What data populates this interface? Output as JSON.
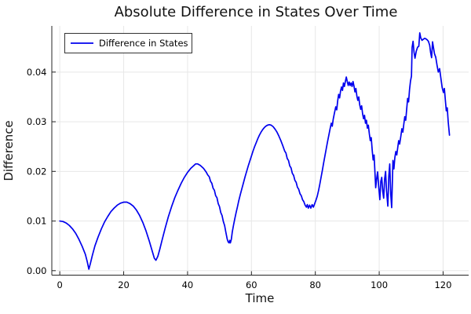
{
  "chart_data": {
    "type": "line",
    "title": "Absolute Difference in States Over Time",
    "xlabel": "Time",
    "ylabel": "Difference",
    "xlim": [
      -2.5,
      128
    ],
    "ylim": [
      -0.0009,
      0.0493
    ],
    "xticks": [
      0,
      20,
      40,
      60,
      80,
      100,
      120
    ],
    "xtick_labels": [
      "0",
      "20",
      "40",
      "60",
      "80",
      "100",
      "120"
    ],
    "yticks": [
      0,
      0.01,
      0.02,
      0.03,
      0.04
    ],
    "ytick_labels": [
      "0.00",
      "0.01",
      "0.02",
      "0.03",
      "0.04"
    ],
    "grid": true,
    "legend": {
      "position": "top-left",
      "border_color": "#333333",
      "background": "#ffffff"
    },
    "colors": {
      "background": "#ffffff",
      "grid": "#e7e7e7",
      "axis": "#252525",
      "text": "#000000",
      "series1": "#0000ee"
    },
    "series": [
      {
        "name": "Difference in States",
        "color": "#0000ee",
        "points": [
          [
            0,
            0.01
          ],
          [
            1,
            0.0099
          ],
          [
            2,
            0.0096
          ],
          [
            3,
            0.0091
          ],
          [
            4,
            0.0084
          ],
          [
            5,
            0.0075
          ],
          [
            6,
            0.0063
          ],
          [
            7,
            0.0049
          ],
          [
            8,
            0.0033
          ],
          [
            8.6,
            0.0018
          ],
          [
            9.1,
            0.0003
          ],
          [
            9.6,
            0.0015
          ],
          [
            10.2,
            0.0031
          ],
          [
            11,
            0.005
          ],
          [
            12,
            0.0068
          ],
          [
            13,
            0.0084
          ],
          [
            14,
            0.0098
          ],
          [
            15,
            0.0109
          ],
          [
            16,
            0.0119
          ],
          [
            17,
            0.0126
          ],
          [
            18,
            0.0132
          ],
          [
            19,
            0.0136
          ],
          [
            20,
            0.0138
          ],
          [
            21,
            0.0138
          ],
          [
            22,
            0.0135
          ],
          [
            23,
            0.013
          ],
          [
            24,
            0.0122
          ],
          [
            25,
            0.0111
          ],
          [
            26,
            0.0097
          ],
          [
            27,
            0.008
          ],
          [
            28,
            0.006
          ],
          [
            29,
            0.0038
          ],
          [
            29.6,
            0.0025
          ],
          [
            30.1,
            0.0021
          ],
          [
            30.7,
            0.0029
          ],
          [
            31.3,
            0.0043
          ],
          [
            32,
            0.0061
          ],
          [
            33,
            0.0086
          ],
          [
            34,
            0.0109
          ],
          [
            35,
            0.0129
          ],
          [
            36,
            0.0147
          ],
          [
            37,
            0.0162
          ],
          [
            38,
            0.0176
          ],
          [
            39,
            0.0188
          ],
          [
            40,
            0.0198
          ],
          [
            41,
            0.0206
          ],
          [
            42,
            0.0212
          ],
          [
            42.5,
            0.0215
          ],
          [
            43.2,
            0.0215
          ],
          [
            44,
            0.0212
          ],
          [
            45,
            0.0206
          ],
          [
            45.8,
            0.0199
          ],
          [
            46.3,
            0.0193
          ],
          [
            46.8,
            0.0189
          ],
          [
            47.2,
            0.018
          ],
          [
            47.6,
            0.0176
          ],
          [
            48,
            0.0166
          ],
          [
            48.4,
            0.0162
          ],
          [
            48.8,
            0.0151
          ],
          [
            49.2,
            0.0147
          ],
          [
            49.6,
            0.0135
          ],
          [
            50,
            0.0129
          ],
          [
            50.4,
            0.0117
          ],
          [
            50.8,
            0.0111
          ],
          [
            51.2,
            0.0099
          ],
          [
            51.6,
            0.0091
          ],
          [
            52,
            0.0077
          ],
          [
            52.4,
            0.0064
          ],
          [
            52.7,
            0.0058
          ],
          [
            53,
            0.0056
          ],
          [
            53.2,
            0.0061
          ],
          [
            53.4,
            0.0056
          ],
          [
            53.7,
            0.0063
          ],
          [
            54,
            0.0078
          ],
          [
            54.4,
            0.0092
          ],
          [
            54.8,
            0.0105
          ],
          [
            55.2,
            0.0117
          ],
          [
            55.6,
            0.0128
          ],
          [
            56,
            0.014
          ],
          [
            56.5,
            0.0153
          ],
          [
            57,
            0.0165
          ],
          [
            57.5,
            0.0177
          ],
          [
            58,
            0.0189
          ],
          [
            58.5,
            0.02
          ],
          [
            59,
            0.0211
          ],
          [
            59.5,
            0.0221
          ],
          [
            60,
            0.0231
          ],
          [
            60.5,
            0.0241
          ],
          [
            61,
            0.025
          ],
          [
            61.5,
            0.0258
          ],
          [
            62,
            0.0266
          ],
          [
            62.5,
            0.0273
          ],
          [
            63,
            0.0279
          ],
          [
            63.5,
            0.0284
          ],
          [
            64,
            0.0288
          ],
          [
            64.5,
            0.0291
          ],
          [
            65,
            0.0293
          ],
          [
            65.6,
            0.0294
          ],
          [
            66.2,
            0.0293
          ],
          [
            66.8,
            0.029
          ],
          [
            67.4,
            0.0285
          ],
          [
            68,
            0.0279
          ],
          [
            68.6,
            0.0271
          ],
          [
            69.2,
            0.0262
          ],
          [
            69.8,
            0.0252
          ],
          [
            70.4,
            0.0241
          ],
          [
            70.8,
            0.0237
          ],
          [
            71.2,
            0.0226
          ],
          [
            71.6,
            0.0222
          ],
          [
            72,
            0.0211
          ],
          [
            72.4,
            0.0207
          ],
          [
            72.8,
            0.0196
          ],
          [
            73.2,
            0.0192
          ],
          [
            73.6,
            0.0182
          ],
          [
            74,
            0.0178
          ],
          [
            74.4,
            0.0168
          ],
          [
            74.8,
            0.0164
          ],
          [
            75.2,
            0.0155
          ],
          [
            75.6,
            0.0151
          ],
          [
            76,
            0.0143
          ],
          [
            76.4,
            0.0139
          ],
          [
            76.8,
            0.0132
          ],
          [
            77.2,
            0.0128
          ],
          [
            77.5,
            0.0133
          ],
          [
            77.8,
            0.0126
          ],
          [
            78.2,
            0.0132
          ],
          [
            78.6,
            0.0126
          ],
          [
            79,
            0.0133
          ],
          [
            79.4,
            0.0128
          ],
          [
            79.8,
            0.0135
          ],
          [
            80.2,
            0.0142
          ],
          [
            80.6,
            0.015
          ],
          [
            81,
            0.0161
          ],
          [
            81.4,
            0.0174
          ],
          [
            81.8,
            0.0188
          ],
          [
            82.2,
            0.0202
          ],
          [
            82.6,
            0.0217
          ],
          [
            83,
            0.0231
          ],
          [
            83.4,
            0.0245
          ],
          [
            83.8,
            0.0259
          ],
          [
            84.2,
            0.0272
          ],
          [
            84.6,
            0.0285
          ],
          [
            85,
            0.0297
          ],
          [
            85.3,
            0.0291
          ],
          [
            85.6,
            0.0305
          ],
          [
            86,
            0.0318
          ],
          [
            86.4,
            0.033
          ],
          [
            86.7,
            0.0324
          ],
          [
            87,
            0.0342
          ],
          [
            87.3,
            0.0355
          ],
          [
            87.6,
            0.0348
          ],
          [
            87.9,
            0.0362
          ],
          [
            88.2,
            0.037
          ],
          [
            88.5,
            0.0363
          ],
          [
            88.8,
            0.0378
          ],
          [
            89.1,
            0.0371
          ],
          [
            89.4,
            0.0381
          ],
          [
            89.7,
            0.039
          ],
          [
            90,
            0.0381
          ],
          [
            90.3,
            0.0373
          ],
          [
            90.6,
            0.038
          ],
          [
            90.9,
            0.0373
          ],
          [
            91.2,
            0.0378
          ],
          [
            91.5,
            0.0371
          ],
          [
            91.8,
            0.0381
          ],
          [
            92.1,
            0.0372
          ],
          [
            92.4,
            0.036
          ],
          [
            92.7,
            0.0367
          ],
          [
            93,
            0.0352
          ],
          [
            93.3,
            0.0343
          ],
          [
            93.6,
            0.035
          ],
          [
            93.9,
            0.0334
          ],
          [
            94.2,
            0.0325
          ],
          [
            94.5,
            0.0332
          ],
          [
            94.8,
            0.0316
          ],
          [
            95.1,
            0.0306
          ],
          [
            95.4,
            0.0313
          ],
          [
            95.7,
            0.0297
          ],
          [
            96,
            0.0303
          ],
          [
            96.3,
            0.0287
          ],
          [
            96.6,
            0.0293
          ],
          [
            96.9,
            0.0276
          ],
          [
            97.2,
            0.0262
          ],
          [
            97.5,
            0.0268
          ],
          [
            97.8,
            0.0243
          ],
          [
            98.1,
            0.0223
          ],
          [
            98.4,
            0.0233
          ],
          [
            98.9,
            0.0167
          ],
          [
            99.2,
            0.0185
          ],
          [
            99.5,
            0.0199
          ],
          [
            99.8,
            0.0172
          ],
          [
            100.2,
            0.0143
          ],
          [
            100.5,
            0.018
          ],
          [
            100.8,
            0.0188
          ],
          [
            101.1,
            0.016
          ],
          [
            101.4,
            0.0146
          ],
          [
            101.7,
            0.0185
          ],
          [
            102,
            0.02
          ],
          [
            102.3,
            0.016
          ],
          [
            102.7,
            0.013
          ],
          [
            103,
            0.019
          ],
          [
            103.3,
            0.0215
          ],
          [
            103.6,
            0.0155
          ],
          [
            103.9,
            0.0127
          ],
          [
            104.3,
            0.0222
          ],
          [
            104.6,
            0.0205
          ],
          [
            104.9,
            0.0228
          ],
          [
            105.2,
            0.024
          ],
          [
            105.5,
            0.0233
          ],
          [
            105.8,
            0.0248
          ],
          [
            106.1,
            0.0262
          ],
          [
            106.4,
            0.0255
          ],
          [
            106.8,
            0.0272
          ],
          [
            107.1,
            0.0286
          ],
          [
            107.4,
            0.0279
          ],
          [
            107.7,
            0.0295
          ],
          [
            108,
            0.031
          ],
          [
            108.3,
            0.0303
          ],
          [
            108.6,
            0.0325
          ],
          [
            108.9,
            0.0347
          ],
          [
            109.2,
            0.034
          ],
          [
            109.5,
            0.0365
          ],
          [
            109.8,
            0.0382
          ],
          [
            110.1,
            0.0392
          ],
          [
            110.3,
            0.045
          ],
          [
            110.6,
            0.0462
          ],
          [
            110.9,
            0.044
          ],
          [
            111.2,
            0.0428
          ],
          [
            111.6,
            0.0442
          ],
          [
            112,
            0.045
          ],
          [
            112.4,
            0.0452
          ],
          [
            112.7,
            0.0479
          ],
          [
            113,
            0.0469
          ],
          [
            113.4,
            0.0464
          ],
          [
            113.8,
            0.0466
          ],
          [
            114.2,
            0.0468
          ],
          [
            114.6,
            0.0467
          ],
          [
            115,
            0.0465
          ],
          [
            115.4,
            0.0462
          ],
          [
            115.8,
            0.0454
          ],
          [
            116.1,
            0.0439
          ],
          [
            116.4,
            0.0429
          ],
          [
            116.7,
            0.0461
          ],
          [
            117,
            0.0449
          ],
          [
            117.3,
            0.0437
          ],
          [
            117.7,
            0.043
          ],
          [
            118.1,
            0.0414
          ],
          [
            118.5,
            0.04
          ],
          [
            118.9,
            0.0407
          ],
          [
            119.3,
            0.0388
          ],
          [
            119.7,
            0.0369
          ],
          [
            120.1,
            0.0359
          ],
          [
            120.4,
            0.0367
          ],
          [
            120.7,
            0.0344
          ],
          [
            121,
            0.0322
          ],
          [
            121.3,
            0.0328
          ],
          [
            121.6,
            0.03
          ],
          [
            122,
            0.0273
          ]
        ]
      }
    ]
  }
}
